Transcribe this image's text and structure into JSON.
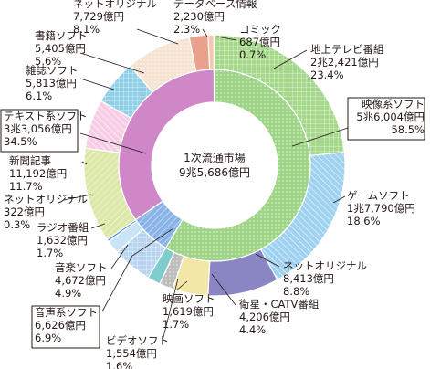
{
  "chart_data": {
    "type": "pie",
    "center_label": [
      "1次流通市場",
      "9兆5,686億円"
    ],
    "inner_ring": [
      {
        "name": "映像系ソフト",
        "amount": "5兆6,004億円",
        "share": "58.5%",
        "value": 58.5,
        "color": "#9ed486",
        "pattern": "dots"
      },
      {
        "name": "音声系ソフト",
        "amount": "6,626億円",
        "share": "6.9%",
        "value": 6.9,
        "color": "#8ab4e8",
        "pattern": "diag"
      },
      {
        "name": "テキスト系ソフト",
        "amount": "3兆3,056億円",
        "share": "34.5%",
        "value": 34.5,
        "color": "#cf87c7",
        "pattern": "none"
      }
    ],
    "outer_ring": [
      {
        "name": "地上テレビ番組",
        "amount": "2兆2,421億円",
        "share": "23.4%",
        "value": 23.4,
        "color": "#a5d88a",
        "pattern": "grid"
      },
      {
        "name": "ゲームソフト",
        "amount": "1兆7,790億円",
        "share": "18.6%",
        "value": 18.6,
        "color": "#9fd2f0",
        "pattern": "hatch"
      },
      {
        "name": "ネットオリジナル",
        "amount": "8,413億円",
        "share": "8.8%",
        "value": 8.8,
        "color": "#8a86c4",
        "pattern": "none"
      },
      {
        "name": "衛星・CATV番組",
        "amount": "4,206億円",
        "share": "4.4%",
        "value": 4.4,
        "color": "#f3e7a8",
        "pattern": "none"
      },
      {
        "name": "映画ソフト",
        "amount": "1,619億円",
        "share": "1.7%",
        "value": 1.7,
        "color": "#bdbdbd",
        "pattern": "dots"
      },
      {
        "name": "ビデオソフト",
        "amount": "1,554億円",
        "share": "1.6%",
        "value": 1.6,
        "color": "#7ecdcc",
        "pattern": "none"
      },
      {
        "name": "音楽ソフト",
        "amount": "4,672億円",
        "share": "4.9%",
        "value": 4.9,
        "color": "#b8d4f0",
        "pattern": "grid"
      },
      {
        "name": "ラジオ番組",
        "amount": "1,632億円",
        "share": "1.7%",
        "value": 1.7,
        "color": "#c9e4f7",
        "pattern": "none"
      },
      {
        "name": "ネットオリジナル",
        "amount": "322億円",
        "share": "0.3%",
        "value": 0.3,
        "color": "#4f8fd0",
        "pattern": "none"
      },
      {
        "name": "新聞記事",
        "amount": "11,192億円",
        "share": "11.7%",
        "value": 11.7,
        "color": "#dce8a8",
        "pattern": "diag"
      },
      {
        "name": "テキスト系ソフト",
        "amount": "3兆3,056億円",
        "share": "34.5%",
        "value": 0,
        "color": "#ffffff",
        "pattern": "none",
        "hidden": true
      },
      {
        "name": "雑誌ソフト",
        "amount": "5,813億円",
        "share": "6.1%",
        "value": 6.1,
        "color": "#f7cde6",
        "pattern": "hatch"
      },
      {
        "name": "書籍ソフト",
        "amount": "5,405億円",
        "share": "5.6%",
        "value": 5.6,
        "color": "#8fd0e6",
        "pattern": "grid"
      },
      {
        "name": "ネットオリジナル",
        "amount": "7,729億円",
        "share": "8.1%",
        "value": 8.1,
        "color": "#f6e3d2",
        "pattern": "dots"
      },
      {
        "name": "データベース情報",
        "amount": "2,230億円",
        "share": "2.3%",
        "value": 2.3,
        "color": "#e9a08c",
        "pattern": "none"
      },
      {
        "name": "コミック",
        "amount": "687億円",
        "share": "0.7%",
        "value": 0.7,
        "color": "#f4c8aa",
        "pattern": "none"
      }
    ]
  }
}
